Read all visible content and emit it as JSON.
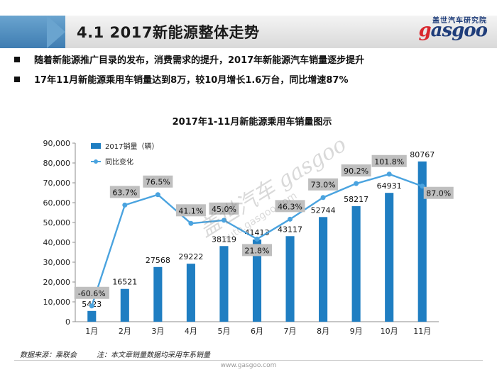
{
  "header": {
    "title": "4.1 2017新能源整体走势"
  },
  "logo": {
    "cn": "盖世汽车研究院",
    "en": "gasgoo"
  },
  "bullets": [
    "随着新能源推广目录的发布，消费需求的提升，2017年新能源汽车销量逐步提升",
    "17年11月新能源乘用车销量达到8万，较10月增长1.6万台，同比增速87%"
  ],
  "watermark": {
    "line1": "盖世汽车 gasgoo",
    "line2": "auto.gasgoo.com"
  },
  "footer": {
    "source": "数据来源：乘联会",
    "note": "注：本文章销量数据均采用车系销量",
    "url": "www.gasgoo.com"
  },
  "colors": {
    "bar": "#1f7ec2",
    "line": "#4aa3df",
    "label_box": "#bfbfbf",
    "header_accent": "#4a86b8"
  },
  "chart_data": {
    "type": "bar",
    "title": "2017年1-11月新能源乘用车销量图示",
    "categories": [
      "1月",
      "2月",
      "3月",
      "4月",
      "5月",
      "6月",
      "7月",
      "8月",
      "9月",
      "10月",
      "11月"
    ],
    "series": [
      {
        "name": "2017销量（辆）",
        "type": "bar",
        "values": [
          5423,
          16521,
          27568,
          29222,
          38119,
          41413,
          43117,
          52744,
          58217,
          64931,
          80767
        ]
      },
      {
        "name": "同比变化",
        "type": "line",
        "values": [
          -60.6,
          63.7,
          76.5,
          41.1,
          45.0,
          21.8,
          46.3,
          73.0,
          90.2,
          101.8,
          87.0
        ],
        "labels": [
          "-60.6%",
          "63.7%",
          "76.5%",
          "41.1%",
          "45.0%",
          "21.8%",
          "46.3%",
          "73.0%",
          "90.2%",
          "101.8%",
          "87.0%"
        ]
      }
    ],
    "bar_labels": [
      "5423",
      "16521",
      "27568",
      "29222",
      "38119",
      "41413",
      "43117",
      "52744",
      "58217",
      "64931",
      "80767"
    ],
    "yticks": [
      "0",
      "10,000",
      "20,000",
      "30,000",
      "40,000",
      "50,000",
      "60,000",
      "70,000",
      "80,000",
      "90,000"
    ],
    "ylim": [
      0,
      90000
    ],
    "y2lim": [
      -80,
      140
    ],
    "legend_position": "top-left",
    "grid": false
  }
}
